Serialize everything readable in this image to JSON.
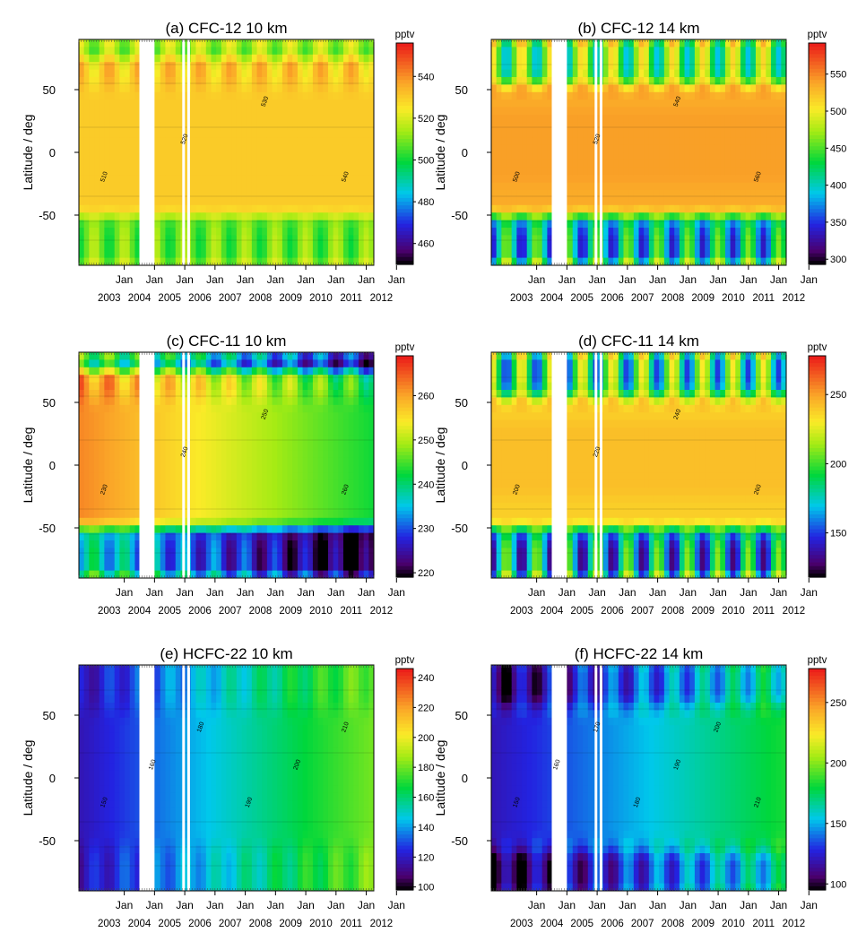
{
  "figure": {
    "ylabel": "Latitude / deg",
    "unit": "pptv",
    "month_tick_label": "Jan",
    "years": [
      "2003",
      "2004",
      "2005",
      "2006",
      "2007",
      "2008",
      "2009",
      "2010",
      "2011",
      "2012"
    ],
    "yticks": [
      50,
      0,
      -50
    ]
  },
  "chart_data": [
    {
      "type": "heatmap",
      "id": "a",
      "title": "(a) CFC-12 10 km",
      "ylabel": "Latitude / deg",
      "xlabel": "",
      "ylim": [
        -90,
        90
      ],
      "x_range": [
        "2002-07",
        "2012-04"
      ],
      "colorbar": {
        "label": "pptv",
        "range": [
          450,
          556
        ],
        "ticks": [
          460,
          480,
          500,
          520,
          540
        ]
      },
      "background_value": 525,
      "regimes": [
        {
          "lat_range": [
            -50,
            75
          ],
          "value": 530
        },
        {
          "lat_range": [
            -90,
            -50
          ],
          "value": 508
        },
        {
          "lat_range": [
            75,
            90
          ],
          "value": 512
        }
      ],
      "seasonal_amplitude_high_lat": 10,
      "trend_per_year": 0,
      "data_gaps": [
        [
          "2004-07",
          "2005-01"
        ],
        [
          "2005-12",
          "2006-01"
        ],
        [
          "2006-02",
          "2006-03"
        ]
      ],
      "contour_labels": [
        "510",
        "520",
        "530",
        "540"
      ]
    },
    {
      "type": "heatmap",
      "id": "b",
      "title": "(b) CFC-12 14 km",
      "ylabel": "Latitude / deg",
      "xlabel": "",
      "ylim": [
        -90,
        90
      ],
      "x_range": [
        "2002-07",
        "2012-04"
      ],
      "colorbar": {
        "label": "pptv",
        "range": [
          293,
          592
        ],
        "ticks": [
          300,
          350,
          400,
          450,
          500,
          550
        ]
      },
      "background_value": 535,
      "regimes": [
        {
          "lat_range": [
            -25,
            35
          ],
          "value": 540
        },
        {
          "lat_range": [
            -90,
            -50
          ],
          "value": 400
        },
        {
          "lat_range": [
            55,
            90
          ],
          "value": 450
        }
      ],
      "seasonal_amplitude_high_lat": 70,
      "trend_per_year": 0,
      "data_gaps": [
        [
          "2004-07",
          "2005-01"
        ],
        [
          "2005-12",
          "2006-01"
        ],
        [
          "2006-02",
          "2006-03"
        ]
      ],
      "contour_labels": [
        "500",
        "520",
        "540",
        "560"
      ]
    },
    {
      "type": "heatmap",
      "id": "c",
      "title": "(c) CFC-11 10 km",
      "ylabel": "Latitude / deg",
      "xlabel": "",
      "ylim": [
        -90,
        90
      ],
      "x_range": [
        "2002-07",
        "2012-04"
      ],
      "colorbar": {
        "label": "pptv",
        "range": [
          219,
          269
        ],
        "ticks": [
          220,
          230,
          240,
          250,
          260
        ]
      },
      "background_value": 250,
      "regimes": [
        {
          "lat_range": [
            -45,
            75
          ],
          "value": 252
        },
        {
          "lat_range": [
            -90,
            -50
          ],
          "value": 228
        },
        {
          "lat_range": [
            75,
            90
          ],
          "value": 232
        }
      ],
      "seasonal_amplitude_high_lat": 6,
      "trend_per_year": -2,
      "data_gaps": [
        [
          "2004-07",
          "2005-01"
        ],
        [
          "2005-12",
          "2006-01"
        ],
        [
          "2006-02",
          "2006-03"
        ]
      ],
      "contour_labels": [
        "230",
        "240",
        "250",
        "260"
      ]
    },
    {
      "type": "heatmap",
      "id": "d",
      "title": "(d) CFC-11 14 km",
      "ylabel": "Latitude / deg",
      "xlabel": "",
      "ylim": [
        -90,
        90
      ],
      "x_range": [
        "2002-07",
        "2012-04"
      ],
      "colorbar": {
        "label": "pptv",
        "range": [
          118,
          278
        ],
        "ticks": [
          150,
          200,
          250
        ]
      },
      "background_value": 238,
      "regimes": [
        {
          "lat_range": [
            -25,
            35
          ],
          "value": 242
        },
        {
          "lat_range": [
            -90,
            -50
          ],
          "value": 170
        },
        {
          "lat_range": [
            55,
            90
          ],
          "value": 190
        }
      ],
      "seasonal_amplitude_high_lat": 45,
      "trend_per_year": 0,
      "data_gaps": [
        [
          "2004-07",
          "2005-01"
        ],
        [
          "2005-12",
          "2006-01"
        ],
        [
          "2006-02",
          "2006-03"
        ]
      ],
      "contour_labels": [
        "200",
        "220",
        "240",
        "260"
      ]
    },
    {
      "type": "heatmap",
      "id": "e",
      "title": "(e) HCFC-22 10 km",
      "ylabel": "Latitude / deg",
      "xlabel": "",
      "ylim": [
        -90,
        90
      ],
      "x_range": [
        "2002-07",
        "2012-04"
      ],
      "colorbar": {
        "label": "pptv",
        "range": [
          98,
          246
        ],
        "ticks": [
          100,
          120,
          140,
          160,
          180,
          200,
          220,
          240
        ]
      },
      "background_value": 150,
      "regimes": [
        {
          "lat_range": [
            -90,
            90
          ],
          "value": 150
        }
      ],
      "seasonal_amplitude_high_lat": 8,
      "trend_per_year": 6.5,
      "data_gaps": [
        [
          "2004-07",
          "2005-01"
        ],
        [
          "2005-12",
          "2006-01"
        ],
        [
          "2006-02",
          "2006-03"
        ]
      ],
      "contour_labels": [
        "150",
        "160",
        "180",
        "190",
        "200",
        "210"
      ]
    },
    {
      "type": "heatmap",
      "id": "f",
      "title": "(f) HCFC-22 14 km",
      "ylabel": "Latitude / deg",
      "xlabel": "",
      "ylim": [
        -90,
        90
      ],
      "x_range": [
        "2002-07",
        "2012-04"
      ],
      "colorbar": {
        "label": "pptv",
        "range": [
          95,
          278
        ],
        "ticks": [
          100,
          150,
          200,
          250
        ]
      },
      "background_value": 150,
      "regimes": [
        {
          "lat_range": [
            -90,
            90
          ],
          "value": 152
        },
        {
          "lat_range": [
            -90,
            -60
          ],
          "value": 130
        },
        {
          "lat_range": [
            60,
            90
          ],
          "value": 135
        }
      ],
      "seasonal_amplitude_high_lat": 20,
      "trend_per_year": 6.5,
      "data_gaps": [
        [
          "2004-07",
          "2005-01"
        ],
        [
          "2005-12",
          "2006-01"
        ],
        [
          "2006-02",
          "2006-03"
        ]
      ],
      "contour_labels": [
        "150",
        "160",
        "170",
        "180",
        "190",
        "200",
        "210"
      ]
    }
  ]
}
